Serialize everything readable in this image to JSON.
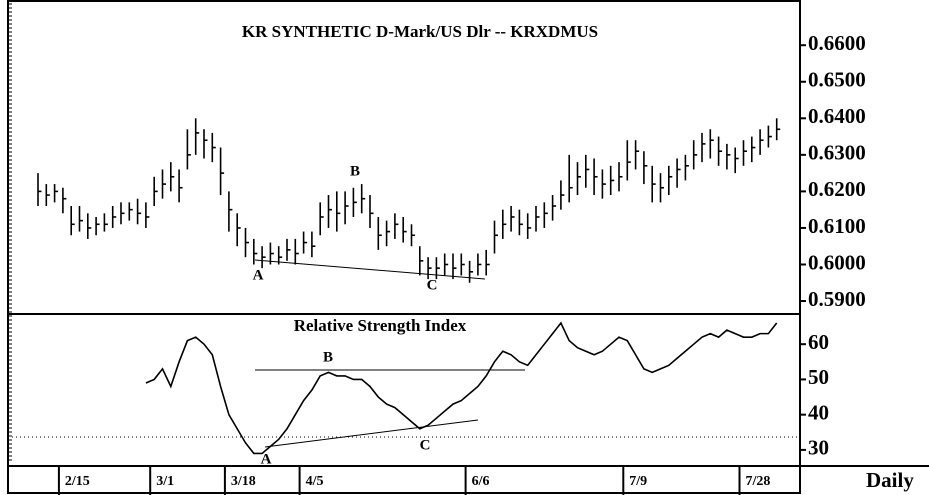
{
  "chart_data": [
    {
      "type": "ohlc",
      "title": "KR SYNTHETIC D-Mark/US Dlr -- KRXDMUS",
      "xlabel": "Daily",
      "color": "#000000",
      "categories": [
        null,
        null,
        null,
        "2/15",
        null,
        null,
        null,
        null,
        null,
        null,
        null,
        null,
        null,
        null,
        "3/1",
        null,
        null,
        null,
        null,
        null,
        null,
        null,
        null,
        "3/18",
        null,
        null,
        null,
        null,
        null,
        null,
        null,
        null,
        "4/5",
        null,
        null,
        null,
        null,
        null,
        null,
        null,
        null,
        null,
        null,
        null,
        null,
        null,
        null,
        null,
        null,
        null,
        null,
        null,
        "6/6",
        null,
        null,
        null,
        null,
        null,
        null,
        null,
        null,
        null,
        null,
        null,
        null,
        null,
        null,
        null,
        null,
        null,
        null,
        "7/9",
        null,
        null,
        null,
        null,
        null,
        null,
        null,
        null,
        null,
        null,
        null,
        null,
        null,
        "7/28",
        null,
        null,
        null,
        null
      ],
      "high": [
        0.625,
        0.622,
        0.622,
        0.621,
        0.616,
        0.616,
        0.614,
        0.613,
        0.614,
        0.616,
        0.617,
        0.617,
        0.618,
        0.617,
        0.624,
        0.626,
        0.628,
        0.626,
        0.637,
        0.64,
        0.637,
        0.636,
        0.632,
        0.62,
        0.614,
        0.61,
        0.607,
        0.605,
        0.606,
        0.605,
        0.607,
        0.607,
        0.609,
        0.609,
        0.617,
        0.619,
        0.62,
        0.62,
        0.621,
        0.622,
        0.619,
        0.613,
        0.612,
        0.614,
        0.613,
        0.611,
        0.605,
        0.602,
        0.602,
        0.603,
        0.603,
        0.603,
        0.601,
        0.603,
        0.604,
        0.612,
        0.615,
        0.616,
        0.615,
        0.614,
        0.616,
        0.617,
        0.619,
        0.623,
        0.63,
        0.628,
        0.63,
        0.629,
        0.626,
        0.627,
        0.628,
        0.634,
        0.634,
        0.631,
        0.627,
        0.625,
        0.627,
        0.629,
        0.63,
        0.634,
        0.636,
        0.637,
        0.635,
        0.633,
        0.632,
        0.634,
        0.635,
        0.637,
        0.638,
        0.64
      ],
      "low": [
        0.616,
        0.616,
        0.617,
        0.614,
        0.608,
        0.609,
        0.607,
        0.608,
        0.609,
        0.61,
        0.611,
        0.612,
        0.611,
        0.61,
        0.616,
        0.618,
        0.62,
        0.617,
        0.626,
        0.63,
        0.629,
        0.628,
        0.619,
        0.609,
        0.605,
        0.602,
        0.6,
        0.599,
        0.6,
        0.6,
        0.601,
        0.6,
        0.603,
        0.602,
        0.608,
        0.61,
        0.609,
        0.611,
        0.613,
        0.614,
        0.61,
        0.604,
        0.605,
        0.607,
        0.606,
        0.605,
        0.597,
        0.596,
        0.596,
        0.597,
        0.596,
        0.597,
        0.595,
        0.597,
        0.597,
        0.603,
        0.607,
        0.609,
        0.608,
        0.607,
        0.609,
        0.61,
        0.612,
        0.615,
        0.617,
        0.619,
        0.621,
        0.619,
        0.618,
        0.619,
        0.62,
        0.623,
        0.626,
        0.622,
        0.617,
        0.617,
        0.619,
        0.621,
        0.623,
        0.626,
        0.628,
        0.629,
        0.627,
        0.626,
        0.625,
        0.627,
        0.628,
        0.63,
        0.632,
        0.634
      ],
      "close": [
        0.62,
        0.619,
        0.62,
        0.618,
        0.611,
        0.612,
        0.61,
        0.611,
        0.611,
        0.613,
        0.614,
        0.615,
        0.614,
        0.613,
        0.62,
        0.622,
        0.624,
        0.621,
        0.63,
        0.636,
        0.634,
        0.632,
        0.625,
        0.615,
        0.61,
        0.606,
        0.603,
        0.602,
        0.603,
        0.602,
        0.604,
        0.603,
        0.606,
        0.605,
        0.613,
        0.615,
        0.614,
        0.616,
        0.617,
        0.618,
        0.614,
        0.608,
        0.609,
        0.611,
        0.609,
        0.608,
        0.601,
        0.599,
        0.599,
        0.6,
        0.599,
        0.6,
        0.598,
        0.6,
        0.6,
        0.608,
        0.611,
        0.613,
        0.611,
        0.61,
        0.613,
        0.614,
        0.616,
        0.619,
        0.621,
        0.624,
        0.626,
        0.624,
        0.622,
        0.623,
        0.624,
        0.628,
        0.631,
        0.627,
        0.622,
        0.621,
        0.624,
        0.626,
        0.627,
        0.63,
        0.633,
        0.634,
        0.631,
        0.63,
        0.629,
        0.631,
        0.632,
        0.634,
        0.635,
        0.637
      ],
      "ylim": [
        0.587,
        0.671
      ],
      "yticks": [
        {
          "value": 0.59,
          "label": "0.5900"
        },
        {
          "value": 0.6,
          "label": "0.6000"
        },
        {
          "value": 0.61,
          "label": "0.6100"
        },
        {
          "value": 0.62,
          "label": "0.6200"
        },
        {
          "value": 0.63,
          "label": "0.6300"
        },
        {
          "value": 0.64,
          "label": "0.6400"
        },
        {
          "value": 0.65,
          "label": "0.6500"
        },
        {
          "value": 0.66,
          "label": "0.6600"
        }
      ],
      "annotations": [
        "A",
        "B",
        "C"
      ]
    },
    {
      "type": "line",
      "title": "Relative Strength Index",
      "color": "#000000",
      "values": [
        null,
        null,
        null,
        null,
        null,
        null,
        null,
        null,
        null,
        null,
        null,
        null,
        null,
        49,
        50,
        53,
        48,
        55,
        61,
        62,
        60,
        57,
        48,
        40,
        36,
        32,
        29,
        29,
        31,
        33,
        36,
        40,
        44,
        47,
        51,
        52,
        51,
        51,
        50,
        50,
        48,
        45,
        43,
        42,
        40,
        38,
        36,
        37,
        39,
        41,
        43,
        44,
        46,
        48,
        51,
        55,
        58,
        57,
        55,
        54,
        57,
        60,
        63,
        66,
        61,
        59,
        58,
        57,
        58,
        60,
        62,
        61,
        57,
        53,
        52,
        53,
        54,
        56,
        58,
        60,
        62,
        63,
        62,
        64,
        63,
        62,
        62,
        63,
        63,
        66
      ],
      "ylim": [
        26,
        68
      ],
      "yticks": [
        30,
        40,
        50,
        60
      ],
      "annotations": [
        "A",
        "B",
        "C"
      ]
    }
  ]
}
